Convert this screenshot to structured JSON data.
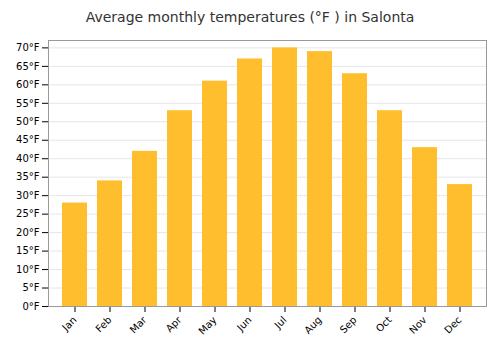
{
  "chart_data": {
    "type": "bar",
    "title": "Average monthly temperatures (°F ) in Salonta",
    "categories": [
      "Jan",
      "Feb",
      "Mar",
      "Apr",
      "May",
      "Jun",
      "Jul",
      "Aug",
      "Sep",
      "Oct",
      "Nov",
      "Dec"
    ],
    "values": [
      28,
      34,
      42,
      53,
      61,
      67,
      70,
      69,
      63,
      53,
      43,
      33
    ],
    "color": "#FFBE2E",
    "ylim": [
      0,
      72
    ],
    "yticks": [
      {
        "value": 0,
        "label": "0°F"
      },
      {
        "value": 5,
        "label": "5°F"
      },
      {
        "value": 10,
        "label": "10°F"
      },
      {
        "value": 15,
        "label": "15°F"
      },
      {
        "value": 20,
        "label": "20°F"
      },
      {
        "value": 25,
        "label": "25°F"
      },
      {
        "value": 30,
        "label": "30°F"
      },
      {
        "value": 35,
        "label": "35°F"
      },
      {
        "value": 40,
        "label": "40°F"
      },
      {
        "value": 45,
        "label": "45°F"
      },
      {
        "value": 50,
        "label": "50°F"
      },
      {
        "value": 55,
        "label": "55°F"
      },
      {
        "value": 60,
        "label": "60°F"
      },
      {
        "value": 65,
        "label": "65°F"
      },
      {
        "value": 70,
        "label": "70°F"
      }
    ],
    "grid": true
  }
}
